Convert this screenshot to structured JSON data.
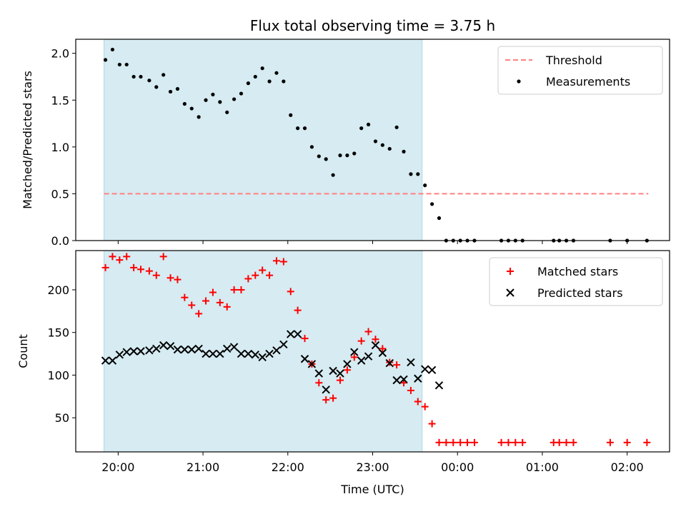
{
  "figure_title": "Flux total observing time = 3.75 h",
  "colors": {
    "shade": "#add8e6",
    "threshold": "#ff8080",
    "measurement": "#000000",
    "matched": "#ff0000",
    "predicted": "#000000"
  },
  "chart_data": [
    {
      "type": "scatter",
      "title": "Flux total observing time = 3.75 h",
      "ylabel": "Matched/Predicted stars",
      "xlabel": "",
      "x_unit": "hours UTC",
      "xlim": [
        "19:30",
        "02:30"
      ],
      "ylim": [
        0,
        2.15
      ],
      "yticks": [
        "0.0",
        "0.5",
        "1.0",
        "1.5",
        "2.0"
      ],
      "xticks": [
        "20:00",
        "21:00",
        "22:00",
        "23:00",
        "00:00",
        "01:00",
        "02:00"
      ],
      "shaded_interval": [
        "19:50",
        "23:35"
      ],
      "legend_position": "upper right",
      "series": [
        {
          "name": "Threshold",
          "style": "dashed-line",
          "x": [
            "19:50",
            "02:15"
          ],
          "values": [
            0.5,
            0.5
          ]
        },
        {
          "name": "Measurements",
          "style": "dot",
          "x": [
            "19:51",
            "19:56",
            "20:01",
            "20:06",
            "20:11",
            "20:16",
            "20:22",
            "20:27",
            "20:32",
            "20:37",
            "20:42",
            "20:47",
            "20:52",
            "20:57",
            "21:02",
            "21:07",
            "21:12",
            "21:17",
            "21:22",
            "21:27",
            "21:32",
            "21:37",
            "21:42",
            "21:47",
            "21:52",
            "21:57",
            "22:02",
            "22:07",
            "22:12",
            "22:17",
            "22:22",
            "22:27",
            "22:32",
            "22:37",
            "22:42",
            "22:47",
            "22:52",
            "22:57",
            "23:02",
            "23:07",
            "23:12",
            "23:17",
            "23:22",
            "23:27",
            "23:32",
            "23:37",
            "23:42",
            "23:47",
            "23:52",
            "23:57",
            "00:02",
            "00:07",
            "00:12",
            "00:31",
            "00:36",
            "00:41",
            "00:46",
            "01:08",
            "01:12",
            "01:17",
            "01:22",
            "01:48",
            "02:00",
            "02:14"
          ],
          "values": [
            1.93,
            2.04,
            1.88,
            1.88,
            1.75,
            1.75,
            1.71,
            1.64,
            1.77,
            1.59,
            1.62,
            1.46,
            1.41,
            1.32,
            1.5,
            1.56,
            1.48,
            1.37,
            1.51,
            1.57,
            1.68,
            1.75,
            1.84,
            1.7,
            1.79,
            1.7,
            1.34,
            1.2,
            1.2,
            1.0,
            0.9,
            0.87,
            0.7,
            0.91,
            0.91,
            0.93,
            1.2,
            1.24,
            1.06,
            1.02,
            0.98,
            1.21,
            0.95,
            0.71,
            0.71,
            0.59,
            0.39,
            0.24,
            0.0,
            0.0,
            0.0,
            0.0,
            0.0,
            0.0,
            0.0,
            0.0,
            0.0,
            0.0,
            0.0,
            0.0,
            0.0,
            0.0,
            0.0,
            0.0
          ]
        }
      ]
    },
    {
      "type": "scatter",
      "title": "",
      "ylabel": "Count",
      "xlabel": "Time (UTC)",
      "x_unit": "hours UTC",
      "xlim": [
        "19:30",
        "02:30"
      ],
      "ylim": [
        10,
        246
      ],
      "yticks": [
        "50",
        "100",
        "150",
        "200"
      ],
      "xticks": [
        "20:00",
        "21:00",
        "22:00",
        "23:00",
        "00:00",
        "01:00",
        "02:00"
      ],
      "shaded_interval": [
        "19:50",
        "23:35"
      ],
      "legend_position": "upper right",
      "series": [
        {
          "name": "Matched stars",
          "style": "plus",
          "x": [
            "19:51",
            "19:56",
            "20:01",
            "20:06",
            "20:11",
            "20:16",
            "20:22",
            "20:27",
            "20:32",
            "20:37",
            "20:42",
            "20:47",
            "20:52",
            "20:57",
            "21:02",
            "21:07",
            "21:12",
            "21:17",
            "21:22",
            "21:27",
            "21:32",
            "21:37",
            "21:42",
            "21:47",
            "21:52",
            "21:57",
            "22:02",
            "22:07",
            "22:12",
            "22:17",
            "22:22",
            "22:27",
            "22:32",
            "22:37",
            "22:42",
            "22:47",
            "22:52",
            "22:57",
            "23:02",
            "23:07",
            "23:12",
            "23:17",
            "23:22",
            "23:27",
            "23:32",
            "23:37",
            "23:42",
            "23:47",
            "23:52",
            "23:57",
            "00:02",
            "00:07",
            "00:12",
            "00:31",
            "00:36",
            "00:41",
            "00:46",
            "01:08",
            "01:12",
            "01:17",
            "01:22",
            "01:48",
            "02:00",
            "02:14"
          ],
          "values": [
            226,
            239,
            235,
            239,
            226,
            224,
            222,
            217,
            239,
            214,
            212,
            191,
            182,
            172,
            187,
            197,
            185,
            180,
            200,
            200,
            213,
            217,
            223,
            217,
            234,
            233,
            198,
            176,
            143,
            113,
            91,
            71,
            73,
            94,
            106,
            121,
            140,
            151,
            142,
            131,
            115,
            112,
            91,
            82,
            69,
            63,
            43,
            21,
            21,
            21,
            21,
            21,
            21,
            21,
            21,
            21,
            21,
            21,
            21,
            21,
            21,
            21,
            21,
            21
          ]
        },
        {
          "name": "Predicted stars",
          "style": "cross",
          "x": [
            "19:51",
            "19:56",
            "20:01",
            "20:06",
            "20:11",
            "20:16",
            "20:22",
            "20:27",
            "20:32",
            "20:37",
            "20:42",
            "20:47",
            "20:52",
            "20:57",
            "21:02",
            "21:07",
            "21:12",
            "21:17",
            "21:22",
            "21:27",
            "21:32",
            "21:37",
            "21:42",
            "21:47",
            "21:52",
            "21:57",
            "22:02",
            "22:07",
            "22:12",
            "22:17",
            "22:22",
            "22:27",
            "22:32",
            "22:37",
            "22:42",
            "22:47",
            "22:52",
            "22:57",
            "23:02",
            "23:07",
            "23:12",
            "23:17",
            "23:22",
            "23:27",
            "23:32",
            "23:37",
            "23:42",
            "23:47"
          ],
          "values": [
            117,
            117,
            124,
            127,
            128,
            128,
            129,
            131,
            135,
            134,
            130,
            130,
            130,
            131,
            125,
            125,
            125,
            131,
            133,
            125,
            125,
            124,
            121,
            125,
            129,
            136,
            148,
            148,
            119,
            113,
            102,
            83,
            105,
            102,
            113,
            127,
            117,
            122,
            135,
            126,
            114,
            94,
            95,
            115,
            96,
            107,
            106,
            88
          ]
        }
      ]
    }
  ]
}
